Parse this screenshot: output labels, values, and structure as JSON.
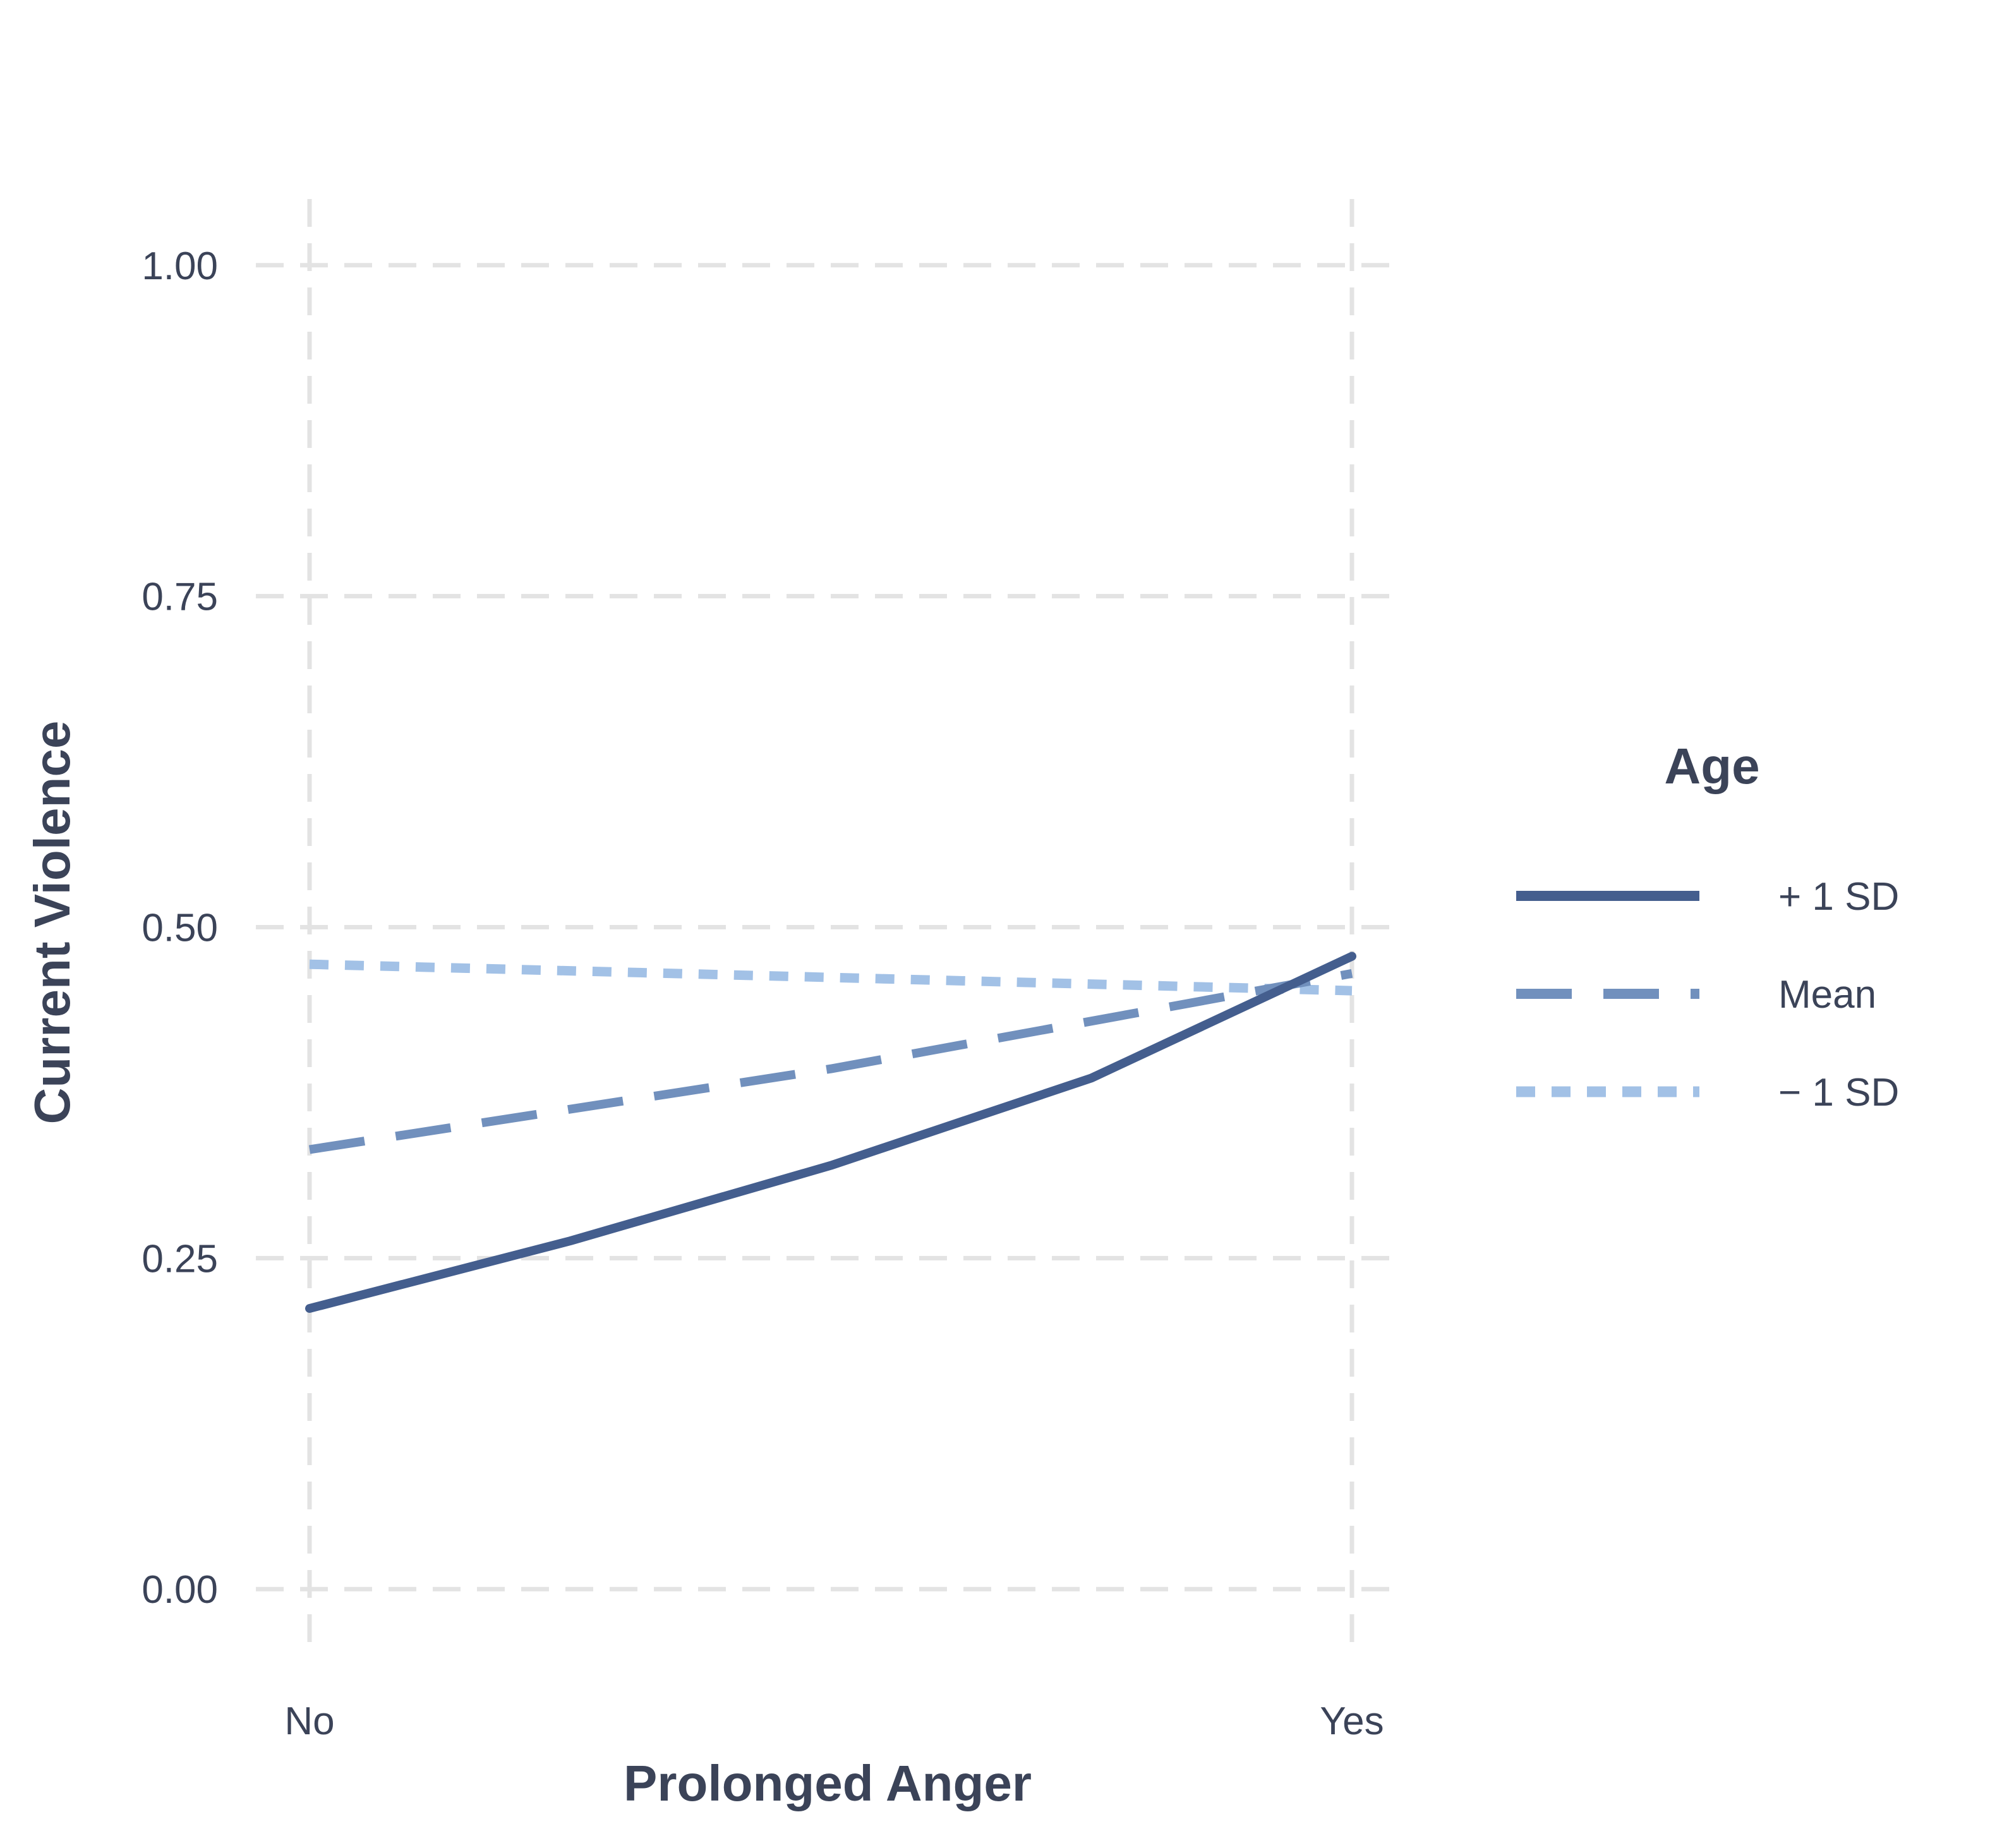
{
  "chart_data": {
    "type": "line",
    "xlabel": "Prolonged Anger",
    "ylabel": "Current Violence",
    "categories": [
      "No",
      "Yes"
    ],
    "ylim": [
      -0.05,
      1.05
    ],
    "yticks": [
      0.0,
      0.25,
      0.5,
      0.75,
      1.0
    ],
    "ytick_labels": [
      "0.00",
      "0.25",
      "0.50",
      "0.75",
      "1.00"
    ],
    "grid": true,
    "legend": {
      "title": "Age",
      "placement": "right"
    },
    "series": [
      {
        "name": "+ 1 SD",
        "color": "#445e8e",
        "line_style": "solid",
        "points": [
          {
            "x": 0.0,
            "y": 0.212
          },
          {
            "x": 0.25,
            "y": 0.263
          },
          {
            "x": 0.5,
            "y": 0.32
          },
          {
            "x": 0.75,
            "y": 0.386
          },
          {
            "x": 1.0,
            "y": 0.478
          }
        ]
      },
      {
        "name": "Mean",
        "color": "#7190bd",
        "line_style": "dashed",
        "points": [
          {
            "x": 0.0,
            "y": 0.332
          },
          {
            "x": 0.5,
            "y": 0.393
          },
          {
            "x": 1.0,
            "y": 0.465
          }
        ]
      },
      {
        "name": "− 1 SD",
        "color": "#a2c1e6",
        "line_style": "dotted",
        "points": [
          {
            "x": 0.0,
            "y": 0.472
          },
          {
            "x": 0.5,
            "y": 0.462
          },
          {
            "x": 1.0,
            "y": 0.452
          }
        ]
      }
    ]
  }
}
